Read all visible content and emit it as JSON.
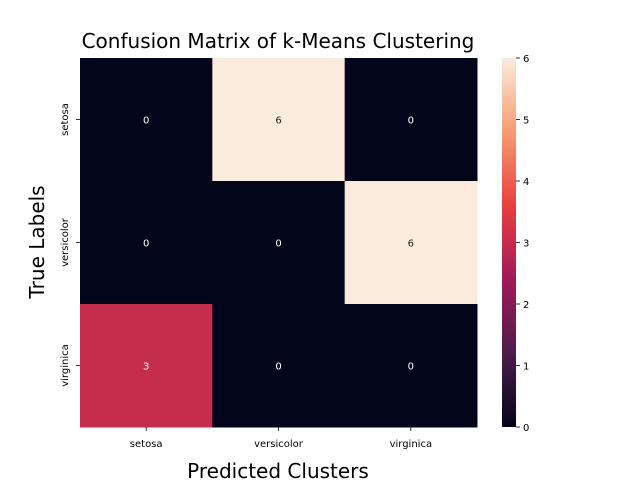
{
  "chart_data": {
    "type": "heatmap",
    "title": "Confusion Matrix of k-Means Clustering",
    "xlabel": "Predicted Clusters",
    "ylabel": "True Labels",
    "x_categories": [
      "setosa",
      "versicolor",
      "virginica"
    ],
    "y_categories": [
      "setosa",
      "versicolor",
      "virginica"
    ],
    "values": [
      [
        0,
        6,
        0
      ],
      [
        0,
        0,
        6
      ],
      [
        3,
        0,
        0
      ]
    ],
    "colorbar": {
      "min": 0,
      "max": 6,
      "ticks": [
        "0",
        "1",
        "2",
        "3",
        "4",
        "5",
        "6"
      ]
    },
    "colormap": [
      "#03051a",
      "#4c1d4b",
      "#a11a5b",
      "#e83f3f",
      "#f69c73",
      "#faebdd"
    ]
  }
}
